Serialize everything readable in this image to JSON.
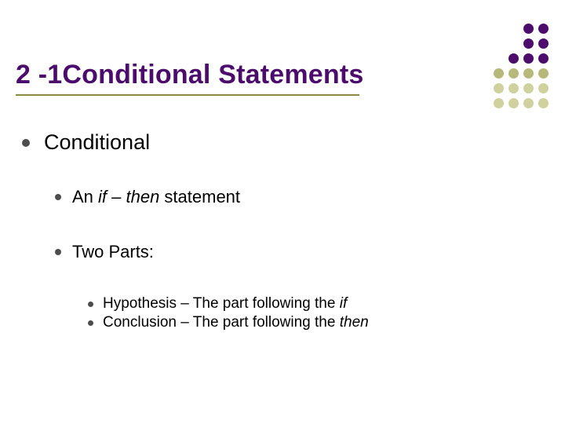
{
  "colors": {
    "title": "#4b0c6b",
    "underline": "#8a8a45",
    "bullet": "#4d4d4d",
    "text": "#000000",
    "dot_purple": "#4b0c6b",
    "dot_olive": "#b6b97a",
    "dot_olive_light": "#cfd19f",
    "background": "#ffffff"
  },
  "title": "2 -1Conditional Statements",
  "layout": {
    "title_fontsize": 34,
    "lvl1_fontsize": 27,
    "lvl2_fontsize": 22,
    "lvl3_fontsize": 19,
    "underline_width": 438
  },
  "lvl1": {
    "item1": "Conditional"
  },
  "lvl2": {
    "item1_pre": "An ",
    "item1_it": "if – then",
    "item1_post": " statement",
    "item2": "Two Parts:"
  },
  "lvl3": {
    "item1_pre": "Hypothesis – The part following the ",
    "item1_it": "if",
    "item2_pre": "Conclusion – The part following the ",
    "item2_it": "then"
  },
  "dots": {
    "rows": 6,
    "cols": 4,
    "cell": 16,
    "gap": 3,
    "diameter": 13,
    "pattern": [
      [
        "empty",
        "empty",
        "purple",
        "purple"
      ],
      [
        "empty",
        "empty",
        "purple",
        "purple"
      ],
      [
        "empty",
        "purple",
        "purple",
        "purple"
      ],
      [
        "olive",
        "olive",
        "olive",
        "olive"
      ],
      [
        "olive_l",
        "olive_l",
        "olive_l",
        "olive_l"
      ],
      [
        "olive_l",
        "olive_l",
        "olive_l",
        "olive_l"
      ]
    ]
  }
}
